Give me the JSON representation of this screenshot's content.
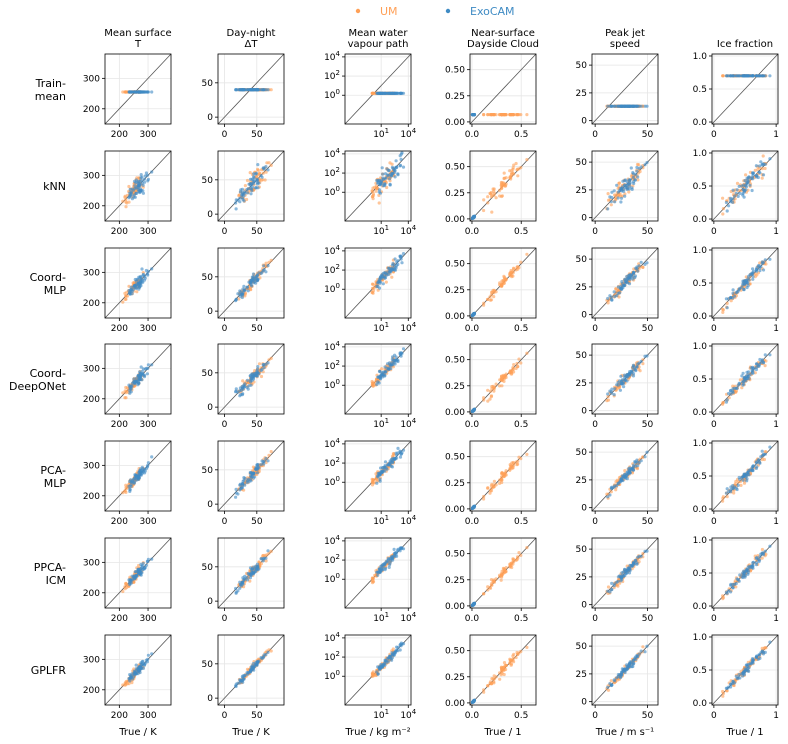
{
  "legend": {
    "placement": "top-center",
    "entries": [
      {
        "label": "UM",
        "color": "#ffa057"
      },
      {
        "label": "ExoCAM",
        "color": "#3f8bc4"
      }
    ]
  },
  "columns": [
    {
      "title": [
        "Mean surface",
        "T"
      ],
      "xlabel": "True / K",
      "scale": "linear",
      "lim": [
        150,
        380
      ],
      "xticks": [
        200,
        300
      ],
      "yticks": [
        200,
        300
      ]
    },
    {
      "title": [
        "Day-night",
        "ΔT"
      ],
      "xlabel": "True / K",
      "scale": "linear",
      "lim": [
        -10,
        92
      ],
      "xticks": [
        0,
        50
      ],
      "yticks": [
        0,
        50
      ]
    },
    {
      "title": [
        "Mean water",
        "vapour path"
      ],
      "xlabel": "True / kg m⁻²",
      "scale": "log",
      "lim": [
        0.001,
        20000
      ],
      "xticks": [
        10,
        10000
      ],
      "yticks": [
        1,
        100,
        10000
      ]
    },
    {
      "title": [
        "Near-surface",
        "Dayside Cloud"
      ],
      "xlabel": "True / 1",
      "scale": "linear",
      "lim": [
        -0.02,
        0.65
      ],
      "xticks": [
        0.0,
        0.5
      ],
      "yticks": [
        0.0,
        0.25,
        0.5
      ]
    },
    {
      "title": [
        "Peak jet",
        "speed"
      ],
      "xlabel": "True / m s⁻¹",
      "scale": "linear",
      "lim": [
        -3,
        60
      ],
      "xticks": [
        0,
        50
      ],
      "yticks": [
        0,
        25,
        50
      ]
    },
    {
      "title": [
        "Ice fraction"
      ],
      "xlabel": "True / 1",
      "scale": "linear",
      "lim": [
        -0.03,
        1.03
      ],
      "xticks": [
        0,
        1
      ],
      "yticks": [
        0.0,
        0.5,
        1.0
      ]
    }
  ],
  "rows": [
    {
      "label": [
        "Train-",
        "mean"
      ],
      "noise": 0
    },
    {
      "label": [
        "kNN"
      ],
      "noise": 0.3
    },
    {
      "label": [
        "Coord-",
        "MLP"
      ],
      "noise": 0.18
    },
    {
      "label": [
        "Coord-",
        "DeepONet"
      ],
      "noise": 0.17
    },
    {
      "label": [
        "PCA-",
        "MLP"
      ],
      "noise": 0.16
    },
    {
      "label": [
        "PPCA-",
        "ICM"
      ],
      "noise": 0.15
    },
    {
      "label": [
        "GPLFR"
      ],
      "noise": 0.12
    }
  ],
  "chart_data": {
    "type": "scatter",
    "layout": "grid of 7 rows × 6 columns; predicted vs true with 1:1 reference line",
    "train_mean_constant_prediction": [
      255,
      40,
      1.6,
      0.07,
      13,
      0.7
    ],
    "series": [
      {
        "name": "UM",
        "true_ranges": [
          [
            200,
            300
          ],
          [
            0,
            90
          ],
          [
            1,
            300
          ],
          [
            0.0,
            0.6
          ],
          [
            0,
            57
          ],
          [
            0.0,
            1.0
          ]
        ],
        "n_points": 60
      },
      {
        "name": "ExoCAM",
        "true_ranges": [
          [
            200,
            350
          ],
          [
            5,
            75
          ],
          [
            3,
            3000
          ],
          [
            0.0,
            0.03
          ],
          [
            5,
            55
          ],
          [
            0.1,
            1.0
          ]
        ],
        "n_points": 60
      }
    ]
  }
}
